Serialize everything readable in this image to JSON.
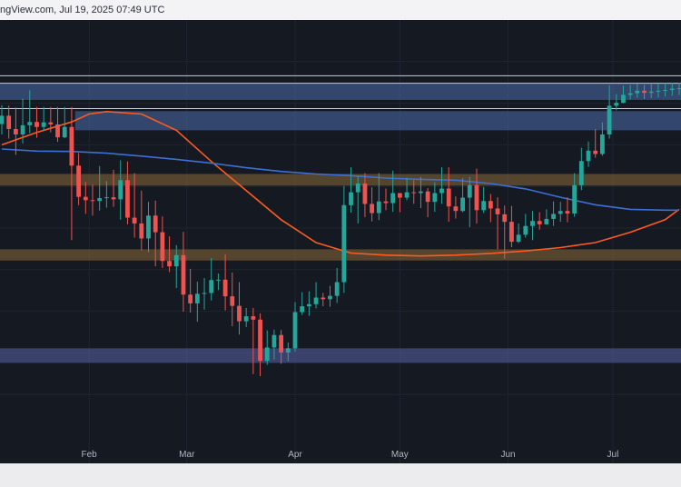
{
  "header": {
    "source_text": "ngView.com, Jul 19, 2025 07:49 UTC"
  },
  "colors": {
    "background": "#151922",
    "grid": "#1f2430",
    "up_candle": "#26a69a",
    "down_candle": "#ef5350",
    "ma_fast": "#ff5a1f",
    "ma_slow": "#3d6fd6",
    "supply_zone": "#4a6ea8",
    "demand_zone": "#8a6a3a",
    "support_zone": "#5a64a8"
  },
  "chart_data": {
    "type": "candlestick",
    "title": "",
    "xlabel": "",
    "ylabel": "",
    "x_tick_labels": [
      "Feb",
      "Mar",
      "Apr",
      "May",
      "Jun",
      "Jul"
    ],
    "x_tick_days": [
      25,
      53,
      84,
      114,
      145,
      175
    ],
    "x_range_days": [
      0,
      194
    ],
    "y_range": [
      0,
      100
    ],
    "price_scale_note": "relative price levels (no price axis visible in crop)",
    "horizontal_lines": [
      86.6,
      84.8,
      78.7
    ],
    "zones": [
      {
        "kind": "supply",
        "low": 80.8,
        "high": 84.8
      },
      {
        "kind": "supply",
        "low": 73.5,
        "high": 78.1
      },
      {
        "kind": "resistance",
        "low": 60.2,
        "high": 63.0
      },
      {
        "kind": "support",
        "low": 42.2,
        "high": 44.9
      },
      {
        "kind": "support",
        "low": 17.6,
        "high": 21.1
      }
    ],
    "series": [
      {
        "kind": "candles",
        "days": [
          0,
          2,
          4,
          6,
          8,
          10,
          12,
          14,
          16,
          18,
          20,
          22,
          24,
          26,
          28,
          30,
          32,
          34,
          36,
          38,
          40,
          42,
          44,
          46,
          48,
          50,
          52,
          54,
          56,
          58,
          60,
          62,
          64,
          66,
          68,
          70,
          72,
          74,
          76,
          78,
          80,
          82,
          84,
          86,
          88,
          90,
          92,
          94,
          96,
          98,
          100,
          102,
          104,
          106,
          108,
          110,
          112,
          114,
          116,
          118,
          120,
          122,
          124,
          126,
          128,
          130,
          132,
          134,
          136,
          138,
          140,
          142,
          144,
          146,
          148,
          150,
          152,
          154,
          156,
          158,
          160,
          162,
          164,
          166,
          168,
          170,
          172,
          174,
          176,
          178,
          180,
          182,
          184,
          186,
          188,
          190,
          192,
          194
        ],
        "close": [
          77.0,
          73.8,
          72.5,
          74.7,
          75.5,
          74.3,
          75.4,
          74.9,
          71.8,
          74.3,
          65.0,
          57.5,
          56.7,
          56.5,
          57.2,
          57.4,
          56.9,
          61.5,
          52.5,
          51.1,
          47.5,
          53.0,
          49.0,
          42.1,
          40.8,
          43.5,
          34.0,
          31.9,
          34.2,
          34.4,
          37.5,
          37.6,
          33.6,
          31.3,
          27.6,
          28.8,
          28.0,
          18.1,
          21.3,
          24.3,
          20.1,
          21.1,
          29.8,
          31.2,
          31.7,
          33.3,
          32.9,
          33.7,
          37.0,
          55.5,
          58.6,
          60.7,
          55.8,
          53.6,
          56.4,
          56.0,
          58.4,
          57.3,
          58.6,
          58.4,
          58.8,
          56.3,
          58.4,
          59.5,
          55.2,
          54.1,
          57.3,
          60.3,
          54.3,
          56.5,
          54.7,
          53.3,
          51.5,
          46.7,
          48.4,
          50.5,
          51.7,
          50.9,
          52.2,
          53.4,
          54.1,
          53.5,
          60.3,
          66.1,
          68.6,
          67.8,
          72.5,
          79.4,
          80.1,
          82.0,
          82.4,
          83.0,
          82.5,
          82.8,
          83.0,
          83.2,
          83.5,
          83.6
        ],
        "high": [
          79.5,
          79.4,
          79.0,
          81.1,
          83.1,
          79.1,
          79.1,
          79.1,
          79.1,
          79.1,
          79.1,
          68.0,
          61.1,
          60.4,
          64.9,
          61.3,
          64.0,
          66.3,
          66.0,
          63.2,
          59.0,
          56.3,
          56.6,
          52.8,
          48.0,
          45.9,
          49.1,
          40.2,
          37.1,
          38.0,
          42.8,
          39.1,
          43.7,
          39.3,
          37.0,
          30.8,
          30.8,
          29.5,
          25.4,
          25.6,
          25.5,
          22.5,
          32.2,
          34.6,
          34.8,
          37.0,
          34.4,
          36.1,
          40.4,
          60.1,
          64.6,
          62.6,
          63.2,
          59.8,
          63.2,
          59.5,
          63.8,
          58.4,
          62.1,
          61.5,
          62.3,
          59.6,
          61.0,
          64.6,
          64.6,
          57.6,
          62.0,
          62.3,
          64.3,
          59.9,
          58.2,
          57.4,
          55.4,
          55.3,
          51.1,
          53.4,
          54.1,
          53.8,
          54.5,
          56.4,
          56.3,
          57.4,
          63.2,
          69.3,
          70.8,
          73.8,
          75.4,
          84.3,
          82.2,
          84.2,
          84.4,
          84.7,
          84.4,
          84.6,
          84.7,
          84.8,
          84.9,
          84.9
        ],
        "low": [
          72.5,
          71.5,
          67.6,
          70.3,
          72.8,
          71.7,
          73.3,
          73.0,
          70.7,
          71.6,
          47.1,
          55.5,
          53.4,
          53.0,
          54.2,
          54.9,
          55.1,
          52.0,
          50.9,
          47.7,
          44.6,
          44.2,
          40.8,
          40.4,
          39.4,
          35.6,
          29.9,
          29.7,
          27.5,
          30.4,
          32.6,
          35.1,
          30.2,
          26.4,
          24.4,
          26.2,
          14.9,
          14.4,
          17.1,
          18.4,
          17.4,
          18.0,
          20.3,
          29.1,
          28.9,
          30.7,
          31.2,
          31.1,
          32.0,
          34.4,
          53.7,
          51.1,
          52.6,
          51.6,
          51.9,
          54.3,
          53.9,
          53.8,
          56.7,
          55.8,
          54.8,
          52.6,
          53.9,
          55.8,
          51.5,
          52.3,
          53.8,
          50.2,
          51.1,
          53.6,
          51.4,
          44.9,
          42.6,
          45.4,
          46.4,
          47.7,
          47.1,
          49.6,
          50.8,
          50.5,
          51.5,
          51.4,
          52.7,
          59.1,
          64.7,
          66.9,
          67.4,
          71.5,
          78.3,
          80.0,
          80.9,
          81.3,
          81.0,
          81.2,
          81.4,
          81.6,
          81.8,
          82.0
        ]
      },
      {
        "kind": "ma_fast",
        "days": [
          0,
          10,
          20,
          25,
          30,
          40,
          50,
          60,
          70,
          80,
          90,
          100,
          110,
          120,
          130,
          140,
          150,
          160,
          170,
          180,
          190,
          194
        ],
        "values": [
          70.0,
          73.0,
          75.5,
          77.4,
          78.0,
          77.4,
          73.5,
          66.0,
          59.0,
          52.0,
          46.5,
          44.0,
          43.5,
          43.3,
          43.5,
          43.9,
          44.5,
          45.3,
          46.5,
          49.0,
          52.0,
          54.5
        ]
      },
      {
        "kind": "ma_slow",
        "days": [
          0,
          10,
          20,
          30,
          40,
          50,
          60,
          70,
          80,
          90,
          100,
          110,
          120,
          130,
          140,
          150,
          160,
          170,
          180,
          190,
          194
        ],
        "values": [
          69.0,
          68.5,
          68.4,
          68.0,
          67.3,
          66.5,
          65.6,
          64.5,
          63.6,
          63.0,
          62.6,
          62.0,
          61.7,
          61.5,
          60.7,
          59.4,
          57.4,
          55.6,
          54.5,
          54.3,
          54.3
        ]
      }
    ]
  }
}
